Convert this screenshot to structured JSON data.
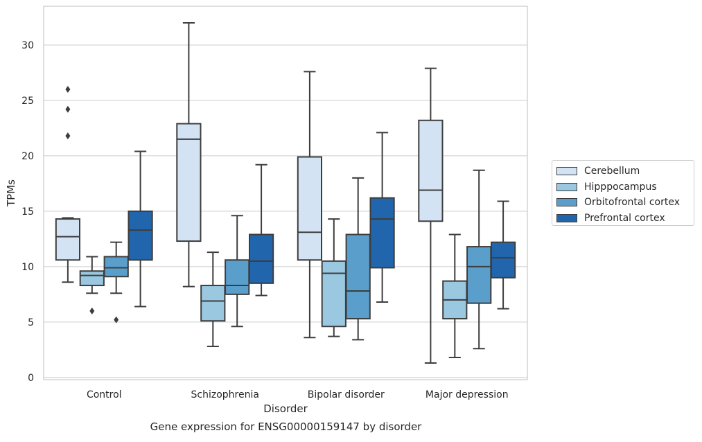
{
  "caption": "Gene expression for ENSG00000159147 by disorder",
  "chart_data": {
    "type": "box",
    "xlabel": "Disorder",
    "ylabel": "TPMs",
    "ylim": [
      -0.2,
      33.5
    ],
    "yticks": [
      0,
      5,
      10,
      15,
      20,
      25,
      30
    ],
    "grid": "horizontal",
    "legend_position": "right",
    "categories": [
      "Control",
      "Schizophrenia",
      "Bipolar disorder",
      "Major depression"
    ],
    "series": [
      {
        "name": "Cerebellum",
        "color": "#d3e3f3",
        "boxes": [
          {
            "whislo": 8.6,
            "q1": 10.6,
            "med": 12.7,
            "q3": 14.3,
            "whishi": 14.4,
            "fliers": [
              21.8,
              24.2,
              26.0
            ]
          },
          {
            "whislo": 8.2,
            "q1": 12.3,
            "med": 21.5,
            "q3": 22.9,
            "whishi": 32.0,
            "fliers": []
          },
          {
            "whislo": 3.6,
            "q1": 10.6,
            "med": 13.1,
            "q3": 19.9,
            "whishi": 27.6,
            "fliers": []
          },
          {
            "whislo": 1.3,
            "q1": 14.1,
            "med": 16.9,
            "q3": 23.2,
            "whishi": 27.9,
            "fliers": []
          }
        ]
      },
      {
        "name": "Hipppocampus",
        "color": "#9ac8e0",
        "boxes": [
          {
            "whislo": 7.6,
            "q1": 8.3,
            "med": 9.2,
            "q3": 9.6,
            "whishi": 10.9,
            "fliers": [
              6.0
            ]
          },
          {
            "whislo": 2.8,
            "q1": 5.1,
            "med": 6.9,
            "q3": 8.3,
            "whishi": 11.3,
            "fliers": []
          },
          {
            "whislo": 3.7,
            "q1": 4.6,
            "med": 9.4,
            "q3": 10.5,
            "whishi": 14.3,
            "fliers": []
          },
          {
            "whislo": 1.8,
            "q1": 5.3,
            "med": 7.0,
            "q3": 8.7,
            "whishi": 12.9,
            "fliers": []
          }
        ]
      },
      {
        "name": "Orbitofrontal cortex",
        "color": "#5a9ecc",
        "boxes": [
          {
            "whislo": 7.6,
            "q1": 9.1,
            "med": 9.9,
            "q3": 10.9,
            "whishi": 12.2,
            "fliers": [
              5.2
            ]
          },
          {
            "whislo": 4.6,
            "q1": 7.5,
            "med": 8.3,
            "q3": 10.6,
            "whishi": 14.6,
            "fliers": []
          },
          {
            "whislo": 3.4,
            "q1": 5.3,
            "med": 7.8,
            "q3": 12.9,
            "whishi": 18.0,
            "fliers": []
          },
          {
            "whislo": 2.6,
            "q1": 6.7,
            "med": 10.0,
            "q3": 11.8,
            "whishi": 18.7,
            "fliers": []
          }
        ]
      },
      {
        "name": "Prefrontal cortex",
        "color": "#2166ac",
        "boxes": [
          {
            "whislo": 6.4,
            "q1": 10.6,
            "med": 13.3,
            "q3": 15.0,
            "whishi": 20.4,
            "fliers": []
          },
          {
            "whislo": 7.4,
            "q1": 8.5,
            "med": 10.5,
            "q3": 12.9,
            "whishi": 19.2,
            "fliers": []
          },
          {
            "whislo": 6.8,
            "q1": 9.9,
            "med": 14.3,
            "q3": 16.2,
            "whishi": 22.1,
            "fliers": []
          },
          {
            "whislo": 6.2,
            "q1": 9.0,
            "med": 10.8,
            "q3": 12.2,
            "whishi": 15.9,
            "fliers": []
          }
        ]
      }
    ]
  }
}
